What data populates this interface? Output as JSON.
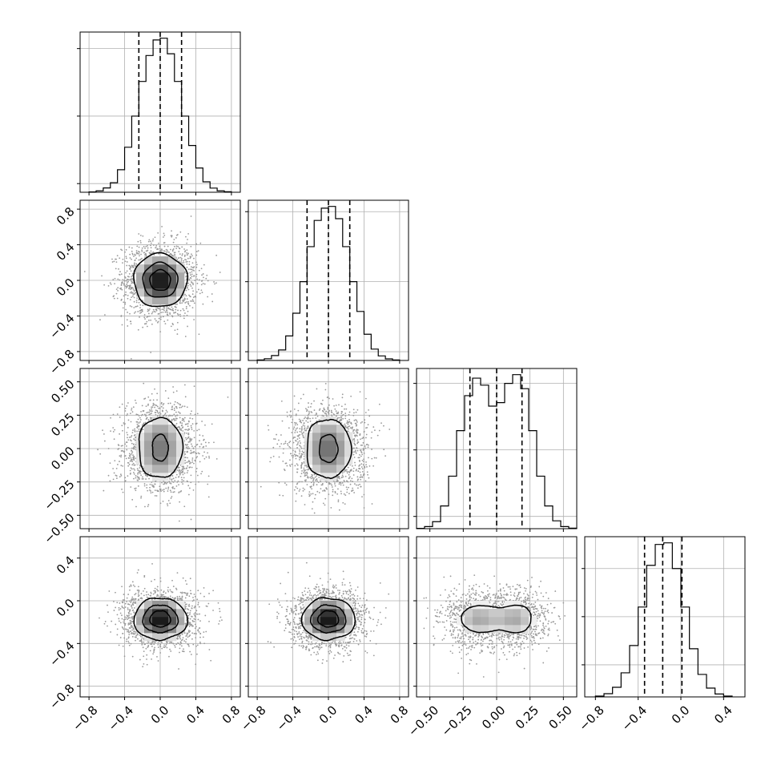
{
  "chart_data": {
    "type": "corner",
    "description_of_layout": "lower-triangle corner plot of 4 parameters",
    "parameters": [
      {
        "range": [
          -0.9,
          0.9
        ],
        "ticks": [
          -0.8,
          -0.4,
          0.0,
          0.4,
          0.8
        ],
        "tick_labels": [
          "−0.8",
          "−0.4",
          "0.0",
          "0.4",
          "0.8"
        ],
        "hist_gridlines_y": [
          50,
          440,
          830
        ],
        "quantiles": [
          -0.24,
          0.0,
          0.24
        ],
        "hist": {
          "bin_edges": [
            -0.8,
            -0.72,
            -0.64,
            -0.56,
            -0.48,
            -0.4,
            -0.32,
            -0.24,
            -0.16,
            -0.08,
            0.0,
            0.08,
            0.16,
            0.24,
            0.32,
            0.4,
            0.48,
            0.56,
            0.64,
            0.72,
            0.8
          ],
          "counts": [
            2,
            8,
            25,
            55,
            130,
            260,
            440,
            640,
            790,
            880,
            890,
            800,
            640,
            440,
            270,
            140,
            60,
            24,
            8,
            3
          ]
        }
      },
      {
        "range": [
          -0.9,
          0.9
        ],
        "ticks": [
          -0.8,
          -0.4,
          0.0,
          0.4,
          0.8
        ],
        "tick_labels": [
          "−0.8",
          "−0.4",
          "0.0",
          "0.4",
          "0.8"
        ],
        "hist_gridlines_y": [
          50,
          450,
          850
        ],
        "quantiles": [
          -0.24,
          0.0,
          0.24
        ],
        "hist": {
          "bin_edges": [
            -0.8,
            -0.72,
            -0.64,
            -0.56,
            -0.48,
            -0.4,
            -0.32,
            -0.24,
            -0.16,
            -0.08,
            0.0,
            0.08,
            0.16,
            0.24,
            0.32,
            0.4,
            0.48,
            0.56,
            0.64,
            0.72,
            0.8
          ],
          "counts": [
            3,
            10,
            28,
            60,
            140,
            270,
            450,
            650,
            800,
            870,
            880,
            810,
            650,
            450,
            280,
            150,
            65,
            26,
            9,
            3
          ]
        }
      },
      {
        "range": [
          -0.6,
          0.6
        ],
        "ticks": [
          -0.5,
          -0.25,
          0.0,
          0.25,
          0.5
        ],
        "tick_labels": [
          "−0.50",
          "−0.25",
          "0.00",
          "0.25",
          "0.50"
        ],
        "hist_gridlines_y": [
          70,
          450,
          830
        ],
        "quantiles": [
          -0.2,
          0.0,
          0.19
        ],
        "hist": {
          "bin_edges": [
            -0.6,
            -0.54,
            -0.48,
            -0.42,
            -0.36,
            -0.3,
            -0.24,
            -0.18,
            -0.12,
            -0.06,
            0.0,
            0.06,
            0.12,
            0.18,
            0.24,
            0.3,
            0.36,
            0.42,
            0.48,
            0.54,
            0.6
          ],
          "counts": [
            2,
            12,
            40,
            130,
            300,
            560,
            760,
            860,
            820,
            700,
            720,
            830,
            880,
            800,
            560,
            300,
            130,
            45,
            12,
            3
          ]
        }
      },
      {
        "range": [
          -0.9,
          0.6
        ],
        "ticks": [
          -0.8,
          -0.4,
          0.0,
          0.4
        ],
        "tick_labels": [
          "−0.8",
          "−0.4",
          "0.0",
          "0.4"
        ],
        "hist_gridlines_y": [
          200,
          500,
          800
        ],
        "quantiles": [
          -0.34,
          -0.17,
          0.01
        ],
        "hist": {
          "bin_edges": [
            -0.8,
            -0.72,
            -0.64,
            -0.56,
            -0.48,
            -0.4,
            -0.32,
            -0.24,
            -0.16,
            -0.08,
            0.0,
            0.08,
            0.16,
            0.24,
            0.32,
            0.4,
            0.48
          ],
          "counts": [
            5,
            20,
            60,
            150,
            320,
            560,
            820,
            950,
            960,
            800,
            560,
            300,
            140,
            55,
            18,
            5
          ]
        }
      }
    ],
    "pair_panels": [
      {
        "row": 1,
        "col": 0,
        "center": [
          0.0,
          0.0
        ],
        "spread": [
          0.2,
          0.2
        ],
        "modes": [
          [
            0.0,
            0.0
          ]
        ]
      },
      {
        "row": 2,
        "col": 0,
        "center": [
          0.0,
          0.0
        ],
        "spread": [
          0.2,
          0.12
        ],
        "modes": [
          [
            0.0,
            0.11
          ],
          [
            0.0,
            -0.1
          ]
        ]
      },
      {
        "row": 2,
        "col": 1,
        "center": [
          0.0,
          0.0
        ],
        "spread": [
          0.2,
          0.12
        ],
        "modes": [
          [
            0.0,
            0.1
          ],
          [
            0.0,
            -0.1
          ]
        ]
      },
      {
        "row": 3,
        "col": 0,
        "center": [
          0.0,
          -0.17
        ],
        "spread": [
          0.2,
          0.13
        ],
        "modes": [
          [
            0.0,
            -0.17
          ]
        ]
      },
      {
        "row": 3,
        "col": 1,
        "center": [
          0.0,
          -0.17
        ],
        "spread": [
          0.2,
          0.13
        ],
        "modes": [
          [
            0.0,
            -0.17
          ]
        ]
      },
      {
        "row": 3,
        "col": 2,
        "center": [
          0.0,
          -0.17
        ],
        "spread": [
          0.12,
          0.13
        ],
        "modes": [
          [
            -0.15,
            -0.17
          ],
          [
            0.15,
            -0.17
          ]
        ]
      }
    ],
    "grid": true,
    "colors": {
      "axes": "#000000",
      "grid": "#b0b0b0",
      "scatter": "#9a9a9a",
      "density_dark": "#111111",
      "density_light": "#f2f2f2"
    }
  }
}
